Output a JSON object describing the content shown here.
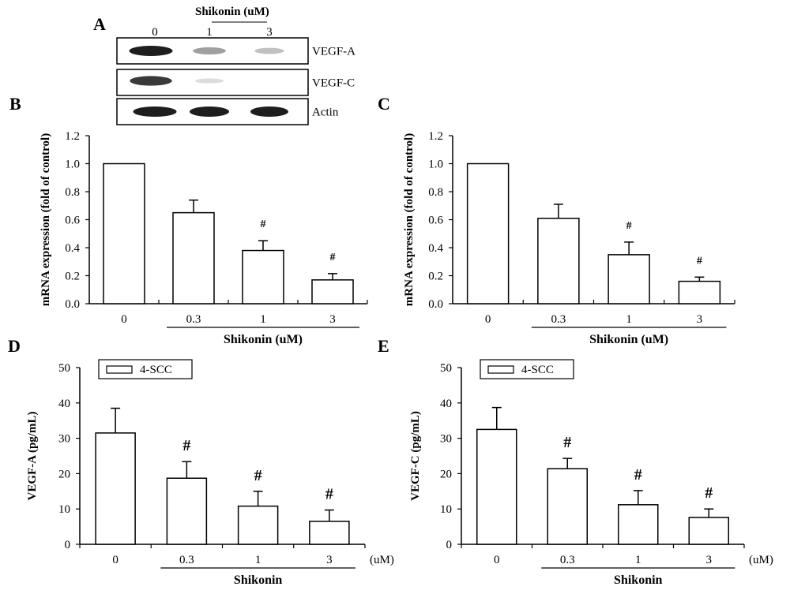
{
  "panel_a": {
    "letter": "A",
    "header_label": "Shikonin (uM)",
    "lane_labels": [
      "0",
      "1",
      "3"
    ],
    "blot_labels": [
      "VEGF-A",
      "VEGF-C",
      "Actin"
    ],
    "band_intensity": [
      [
        1.0,
        0.45,
        0.25
      ],
      [
        0.9,
        0.05,
        0.0
      ],
      [
        1.0,
        1.0,
        1.0
      ]
    ]
  },
  "chart_data": [
    {
      "panel": "B",
      "type": "bar",
      "categories": [
        "0",
        "0.3",
        "1",
        "3"
      ],
      "values": [
        1.0,
        0.65,
        0.38,
        0.17
      ],
      "errors": [
        0,
        0.09,
        0.07,
        0.045
      ],
      "significance": [
        "",
        "",
        "#",
        "#"
      ],
      "ylabel": "mRNA expression (fold of control)",
      "xlabel": "Shikonin (uM)",
      "xlabel_bracket_categories": [
        "0.3",
        "1",
        "3"
      ],
      "yticks": [
        "0.0",
        "0.2",
        "0.4",
        "0.6",
        "0.8",
        "1.0",
        "1.2"
      ],
      "ylim": [
        0,
        1.2
      ],
      "legend": "",
      "x_unit_label": ""
    },
    {
      "panel": "C",
      "type": "bar",
      "categories": [
        "0",
        "0.3",
        "1",
        "3"
      ],
      "values": [
        1.0,
        0.61,
        0.35,
        0.16
      ],
      "errors": [
        0,
        0.1,
        0.09,
        0.03
      ],
      "significance": [
        "",
        "",
        "#",
        "#"
      ],
      "ylabel": "mRNA expression (fold of control)",
      "xlabel": "Shikonin (uM)",
      "xlabel_bracket_categories": [
        "0.3",
        "1",
        "3"
      ],
      "yticks": [
        "0.0",
        "0.2",
        "0.4",
        "0.6",
        "0.8",
        "1.0",
        "1.2"
      ],
      "ylim": [
        0,
        1.2
      ],
      "legend": "",
      "x_unit_label": ""
    },
    {
      "panel": "D",
      "type": "bar",
      "categories": [
        "0",
        "0.3",
        "1",
        "3"
      ],
      "values": [
        31.5,
        18.7,
        10.8,
        6.5
      ],
      "errors": [
        7.0,
        4.7,
        4.2,
        3.2
      ],
      "significance": [
        "",
        "#",
        "#",
        "#"
      ],
      "ylabel": "VEGF-A (pg/mL)",
      "xlabel": "Shikonin",
      "xlabel_bracket_categories": [
        "0.3",
        "1",
        "3"
      ],
      "yticks": [
        "0",
        "10",
        "20",
        "30",
        "40",
        "50"
      ],
      "ylim": [
        0,
        50
      ],
      "legend": "4-SCC",
      "x_unit_label": "(uM)"
    },
    {
      "panel": "E",
      "type": "bar",
      "categories": [
        "0",
        "0.3",
        "1",
        "3"
      ],
      "values": [
        32.5,
        21.4,
        11.2,
        7.6
      ],
      "errors": [
        6.2,
        2.9,
        4.0,
        2.4
      ],
      "significance": [
        "",
        "#",
        "#",
        "#"
      ],
      "ylabel": "VEGF-C (pg/mL)",
      "xlabel": "Shikonin",
      "xlabel_bracket_categories": [
        "0.3",
        "1",
        "3"
      ],
      "yticks": [
        "0",
        "10",
        "20",
        "30",
        "40",
        "50"
      ],
      "ylim": [
        0,
        50
      ],
      "legend": "4-SCC",
      "x_unit_label": "(uM)"
    }
  ]
}
